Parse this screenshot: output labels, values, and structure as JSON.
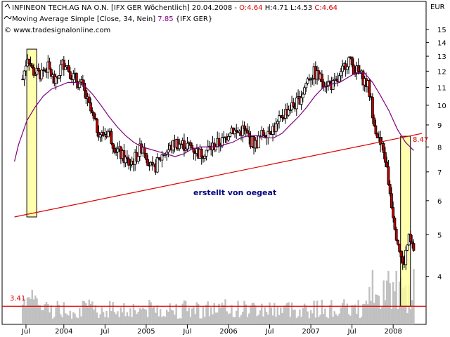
{
  "header": {
    "title_line": "INFINEON TECH.AG NA O.N. [IFX GER  Wöchentlich] 20.04.2008 - ",
    "o_label": "O:4.64",
    "hlc_label": "H:4.71 L:4.53",
    "c_label": "C:4.64",
    "ma_label": "Moving Average Simple [Close, 34, Nein]",
    "ma_value": "7.85",
    "ma_suffix": "{IFX GER}",
    "copyright": "© www.tradesignalonline.com",
    "currency": "EUR"
  },
  "annotation": "erstellt von oegeat",
  "colors": {
    "candle": "#000000",
    "up_fill": "#ffffff",
    "down_fill": "#c00000",
    "ma": "#800080",
    "trendline": "#dd0000",
    "support": "#dd0000",
    "highlight": "#ffff99",
    "volume": "#c0c0c0",
    "border": "#000000"
  },
  "chart_data": {
    "type": "candlestick",
    "title": "INFINEON TECH.AG NA O.N. [IFX GER  Wöchentlich]",
    "x_tick_labels": [
      "Jul",
      "2004",
      "Jul",
      "2005",
      "Jul",
      "2006",
      "Jul",
      "2007",
      "Jul",
      "2008"
    ],
    "y_tick_labels": [
      "4",
      "5",
      "6",
      "7",
      "8",
      "9",
      "10",
      "11",
      "12",
      "13",
      "14",
      "15"
    ],
    "y_axis_scale": "log",
    "ylim": [
      3.4,
      16
    ],
    "last_bar": {
      "date": "20.04.2008",
      "open": 4.64,
      "high": 4.71,
      "low": 4.53,
      "close": 4.64
    },
    "moving_average": {
      "name": "Moving Average Simple [Close, 34, Nein]",
      "last": 7.85
    },
    "level_labels": [
      "8.47",
      "3.41"
    ],
    "close_path": [
      [
        2003.5,
        11.5
      ],
      [
        2003.56,
        13.1
      ],
      [
        2003.62,
        12.0
      ],
      [
        2003.7,
        11.8
      ],
      [
        2003.8,
        12.3
      ],
      [
        2003.9,
        11.2
      ],
      [
        2003.97,
        12.4
      ],
      [
        2004.02,
        12.6
      ],
      [
        2004.07,
        12.0
      ],
      [
        2004.12,
        11.6
      ],
      [
        2004.22,
        11.1
      ],
      [
        2004.3,
        10.0
      ],
      [
        2004.38,
        9.0
      ],
      [
        2004.46,
        8.5
      ],
      [
        2004.54,
        8.7
      ],
      [
        2004.62,
        8.0
      ],
      [
        2004.71,
        7.6
      ],
      [
        2004.8,
        7.3
      ],
      [
        2004.88,
        7.6
      ],
      [
        2004.96,
        8.1
      ],
      [
        2005.03,
        7.4
      ],
      [
        2005.08,
        7.0
      ],
      [
        2005.13,
        7.3
      ],
      [
        2005.2,
        7.7
      ],
      [
        2005.28,
        7.9
      ],
      [
        2005.36,
        8.2
      ],
      [
        2005.45,
        8.1
      ],
      [
        2005.55,
        8.0
      ],
      [
        2005.65,
        7.7
      ],
      [
        2005.75,
        7.9
      ],
      [
        2005.85,
        8.1
      ],
      [
        2005.95,
        8.3
      ],
      [
        2006.03,
        8.9
      ],
      [
        2006.1,
        8.6
      ],
      [
        2006.18,
        8.8
      ],
      [
        2006.26,
        8.3
      ],
      [
        2006.33,
        8.1
      ],
      [
        2006.42,
        8.6
      ],
      [
        2006.5,
        8.8
      ],
      [
        2006.58,
        8.9
      ],
      [
        2006.66,
        9.5
      ],
      [
        2006.75,
        9.9
      ],
      [
        2006.83,
        10.1
      ],
      [
        2006.9,
        10.7
      ],
      [
        2006.97,
        11.6
      ],
      [
        2007.04,
        11.9
      ],
      [
        2007.12,
        11.5
      ],
      [
        2007.2,
        11.3
      ],
      [
        2007.28,
        11.1
      ],
      [
        2007.36,
        11.6
      ],
      [
        2007.42,
        12.5
      ],
      [
        2007.46,
        12.8
      ],
      [
        2007.52,
        12.2
      ],
      [
        2007.58,
        11.9
      ],
      [
        2007.64,
        11.5
      ],
      [
        2007.7,
        11.0
      ],
      [
        2007.74,
        9.9
      ],
      [
        2007.78,
        9.0
      ],
      [
        2007.82,
        8.3
      ],
      [
        2007.86,
        8.0
      ],
      [
        2007.9,
        7.6
      ],
      [
        2007.93,
        6.9
      ],
      [
        2007.96,
        6.3
      ],
      [
        2008.0,
        5.6
      ],
      [
        2008.04,
        5.0
      ],
      [
        2008.08,
        4.6
      ],
      [
        2008.12,
        4.2
      ],
      [
        2008.16,
        4.6
      ],
      [
        2008.19,
        4.9
      ],
      [
        2008.22,
        4.7
      ],
      [
        2008.25,
        4.64
      ]
    ],
    "ma_path": [
      [
        2003.4,
        7.4
      ],
      [
        2003.45,
        8.1
      ],
      [
        2003.55,
        9.2
      ],
      [
        2003.65,
        9.9
      ],
      [
        2003.75,
        10.5
      ],
      [
        2003.85,
        10.9
      ],
      [
        2003.95,
        11.1
      ],
      [
        2004.05,
        11.3
      ],
      [
        2004.15,
        11.3
      ],
      [
        2004.25,
        11.1
      ],
      [
        2004.35,
        10.6
      ],
      [
        2004.45,
        10.0
      ],
      [
        2004.55,
        9.4
      ],
      [
        2004.65,
        8.9
      ],
      [
        2004.75,
        8.5
      ],
      [
        2004.85,
        8.2
      ],
      [
        2004.95,
        8.0
      ],
      [
        2005.05,
        7.9
      ],
      [
        2005.15,
        7.8
      ],
      [
        2005.25,
        7.7
      ],
      [
        2005.35,
        7.6
      ],
      [
        2005.45,
        7.7
      ],
      [
        2005.55,
        7.9
      ],
      [
        2005.65,
        8.0
      ],
      [
        2005.75,
        8.0
      ],
      [
        2005.85,
        8.0
      ],
      [
        2005.95,
        8.1
      ],
      [
        2006.05,
        8.2
      ],
      [
        2006.15,
        8.4
      ],
      [
        2006.25,
        8.5
      ],
      [
        2006.35,
        8.5
      ],
      [
        2006.45,
        8.4
      ],
      [
        2006.55,
        8.4
      ],
      [
        2006.65,
        8.6
      ],
      [
        2006.75,
        9.0
      ],
      [
        2006.85,
        9.4
      ],
      [
        2006.95,
        9.9
      ],
      [
        2007.05,
        10.5
      ],
      [
        2007.15,
        11.0
      ],
      [
        2007.25,
        11.2
      ],
      [
        2007.35,
        11.3
      ],
      [
        2007.45,
        11.6
      ],
      [
        2007.55,
        11.9
      ],
      [
        2007.65,
        11.9
      ],
      [
        2007.75,
        11.3
      ],
      [
        2007.85,
        10.5
      ],
      [
        2007.95,
        9.7
      ],
      [
        2008.05,
        8.8
      ],
      [
        2008.15,
        8.2
      ],
      [
        2008.25,
        7.85
      ]
    ],
    "trendline": {
      "from": [
        2003.4,
        5.5
      ],
      "to": [
        2008.35,
        8.6
      ]
    },
    "support_level": 3.41,
    "highlight_boxes": [
      {
        "x0": 2003.55,
        "x1": 2003.67,
        "y0": 5.5,
        "y1": 13.5
      },
      {
        "x0": 2008.09,
        "x1": 2008.21,
        "y0": 3.41,
        "y1": 8.47
      }
    ]
  }
}
